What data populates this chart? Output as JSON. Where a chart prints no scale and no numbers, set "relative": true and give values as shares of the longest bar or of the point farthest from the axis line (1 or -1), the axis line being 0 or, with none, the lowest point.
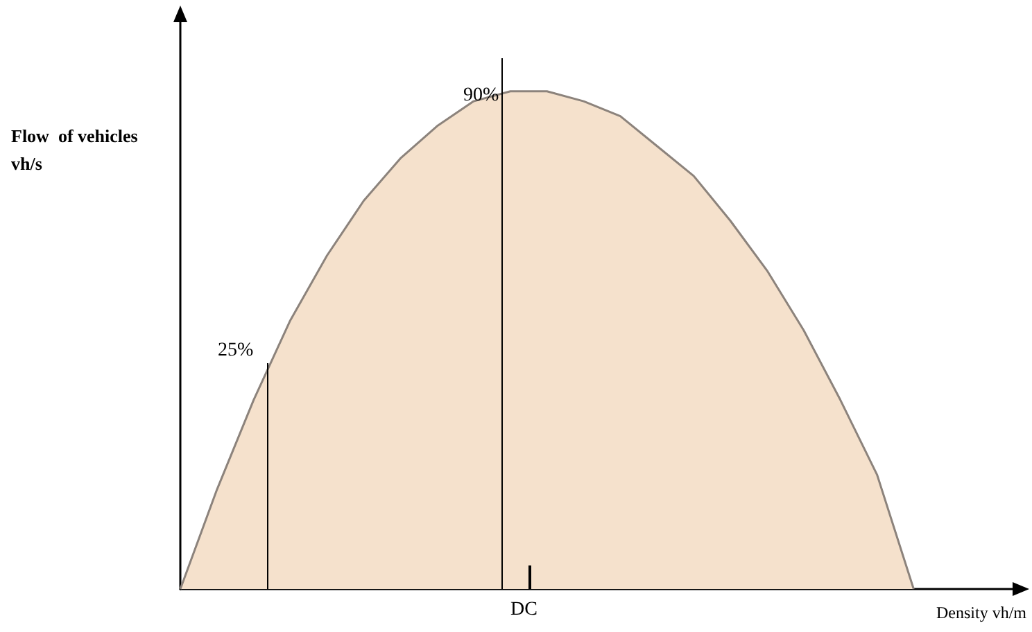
{
  "chart_data": {
    "type": "area",
    "relative": true,
    "xlabel": "Density vh/m",
    "ylabel": "Flow  of vehicles vh/s",
    "categories": [
      null,
      null,
      null,
      null,
      null,
      null,
      null,
      null,
      null,
      null,
      null,
      null,
      null,
      null,
      null,
      null,
      null,
      null,
      null,
      null,
      null,
      null,
      null,
      null
    ],
    "values": [
      0,
      0.2,
      0.38,
      0.54,
      0.67,
      0.78,
      0.865,
      0.93,
      0.98,
      1.0,
      1.0,
      0.98,
      0.95,
      0.89,
      0.83,
      0.74,
      0.64,
      0.52,
      0.38,
      0.23,
      0,
      null,
      null,
      null
    ],
    "color": "#f5e1cc",
    "annotations": [
      "25%",
      "90%",
      "DC"
    ],
    "grid": false,
    "marker": "none"
  }
}
